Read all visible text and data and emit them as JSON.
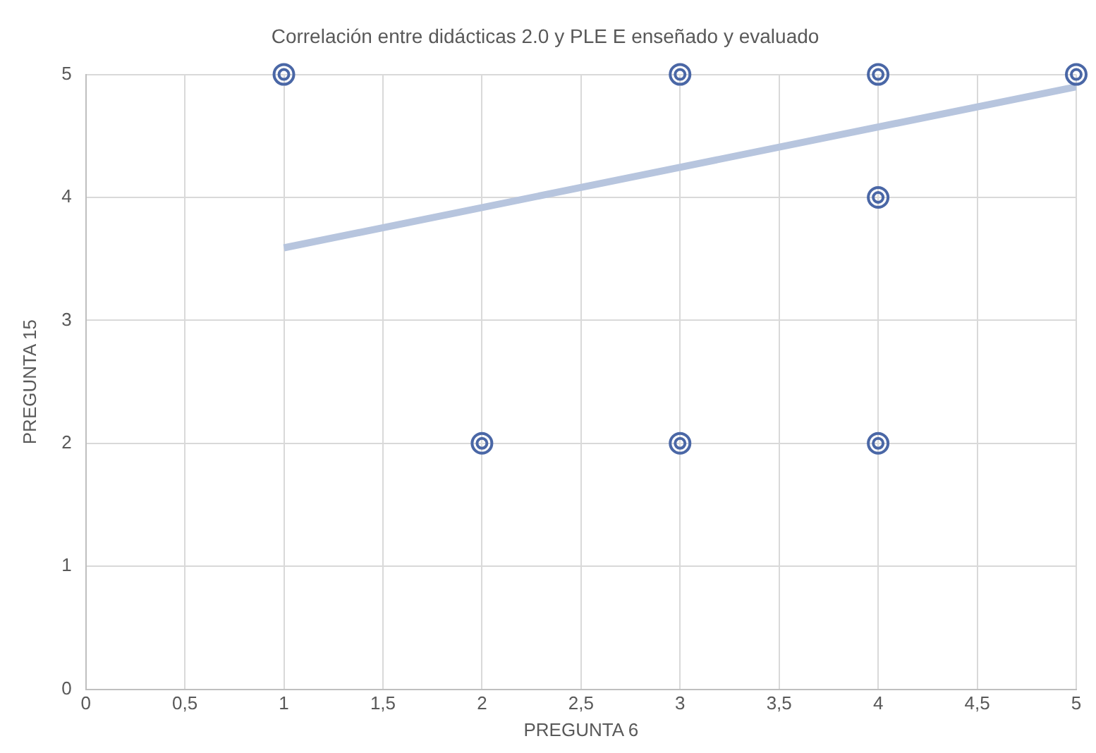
{
  "chart_data": {
    "type": "scatter",
    "title": "Correlación entre didácticas 2.0 y PLE E enseñado y evaluado",
    "xlabel": "PREGUNTA 6",
    "ylabel": "PREGUNTA 15",
    "series": [
      {
        "marker": "circle",
        "color": "#4a67a6",
        "x": [
          1,
          3,
          4,
          5,
          4,
          2,
          3,
          4
        ],
        "values": [
          5,
          5,
          5,
          5,
          4,
          2,
          2,
          2
        ]
      },
      {
        "type": "line",
        "marker": "none",
        "color": "#b7c5de",
        "x": [
          1,
          5
        ],
        "values": [
          3.59,
          4.9
        ]
      }
    ],
    "grid": true,
    "xlim": [
      0,
      5
    ],
    "ylim": [
      0,
      5
    ],
    "xticks": [
      0,
      {
        "value": 0.5,
        "label": "0,5"
      },
      1,
      {
        "value": 1.5,
        "label": "1,5"
      },
      2,
      {
        "value": 2.5,
        "label": "2,5"
      },
      3,
      {
        "value": 3.5,
        "label": "3,5"
      },
      4,
      {
        "value": 4.5,
        "label": "4,5"
      },
      5
    ],
    "yticks": [
      0,
      1,
      2,
      3,
      4,
      5
    ]
  }
}
